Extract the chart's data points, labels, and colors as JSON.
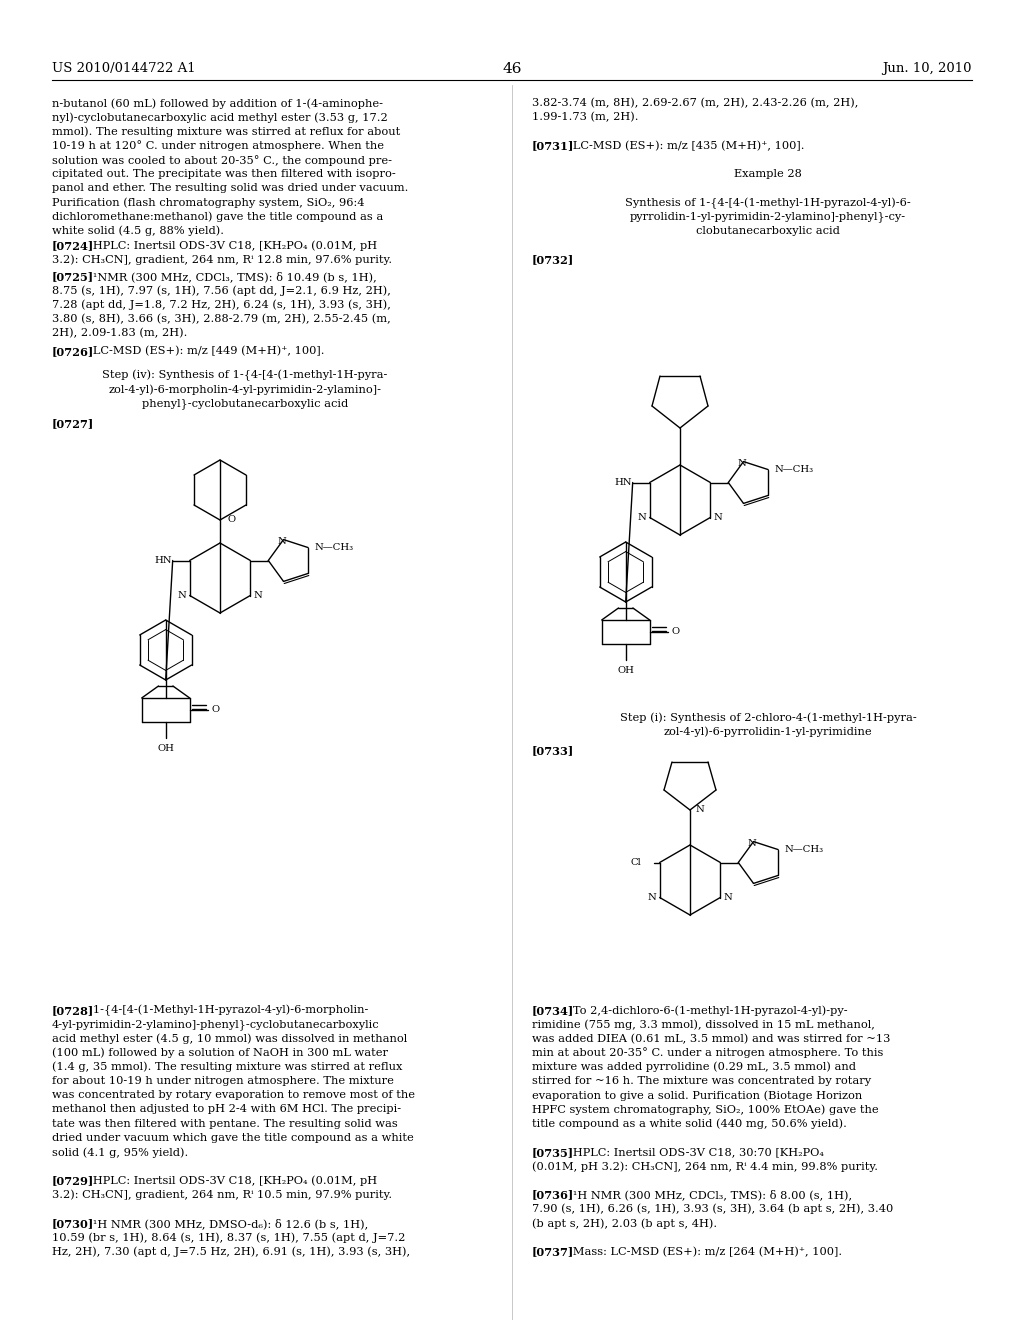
{
  "patent_number": "US 2010/0144722 A1",
  "patent_date": "Jun. 10, 2010",
  "page_number": "46",
  "bg_color": "#ffffff",
  "left_col_lines": [
    "n-butanol (60 mL) followed by addition of 1-(4-aminophe-",
    "nyl)-cyclobutanecarboxylic acid methyl ester (3.53 g, 17.2",
    "mmol). The resulting mixture was stirred at reflux for about",
    "10-19 h at 120° C. under nitrogen atmosphere. When the",
    "solution was cooled to about 20-35° C., the compound pre-",
    "cipitated out. The precipitate was then filtered with isopro-",
    "panol and ether. The resulting solid was dried under vacuum.",
    "Purification (flash chromatography system, SiO₂, 96:4",
    "dichloromethane:methanol) gave the title compound as a",
    "white solid (4.5 g, 88% yield)."
  ],
  "right_col_lines_top": [
    "3.82-3.74 (m, 8H), 2.69-2.67 (m, 2H), 2.43-2.26 (m, 2H),",
    "1.99-1.73 (m, 2H).",
    "",
    "[0731]   LC-MSD (ES+): m/z [435 (M+H)⁺, 100].",
    "",
    "Example 28",
    "",
    "Synthesis of 1-{4-[4-(1-methyl-1H-pyrazol-4-yl)-6-",
    "pyrrolidin-1-yl-pyrimidin-2-ylamino]-phenyl}-cy-",
    "clobutanecarboxylic acid",
    "",
    "[0732]"
  ],
  "step_iv_lines": [
    "Step (iv): Synthesis of 1-{4-[4-(1-methyl-1H-pyra-",
    "zol-4-yl)-6-morpholin-4-yl-pyrimidin-2-ylamino]-",
    "phenyl}-cyclobutanecarboxylic acid"
  ],
  "step_i_lines": [
    "Step (i): Synthesis of 2-chloro-4-(1-methyl-1H-pyra-",
    "zol-4-yl)-6-pyrrolidin-1-yl-pyrimidine"
  ],
  "bottom_left_lines": [
    "[0728]   1-{4-[4-(1-Methyl-1H-pyrazol-4-yl)-6-morpholin-",
    "4-yl-pyrimidin-2-ylamino]-phenyl}-cyclobutanecarboxylic",
    "acid methyl ester (4.5 g, 10 mmol) was dissolved in methanol",
    "(100 mL) followed by a solution of NaOH in 300 mL water",
    "(1.4 g, 35 mmol). The resulting mixture was stirred at reflux",
    "for about 10-19 h under nitrogen atmosphere. The mixture",
    "was concentrated by rotary evaporation to remove most of the",
    "methanol then adjusted to pH 2-4 with 6M HCl. The precipi-",
    "tate was then filtered with pentane. The resulting solid was",
    "dried under vacuum which gave the title compound as a white",
    "solid (4.1 g, 95% yield).",
    "",
    "[0729]   HPLC: Inertsil ODS-3V C18, [KH₂PO₄ (0.01M, pH",
    "3.2): CH₃CN], gradient, 264 nm, Rⁱ 10.5 min, 97.9% purity.",
    "",
    "[0730]   ¹H NMR (300 MHz, DMSO-d₆): δ 12.6 (b s, 1H),",
    "10.59 (br s, 1H), 8.64 (s, 1H), 8.37 (s, 1H), 7.55 (apt d, J=7.2",
    "Hz, 2H), 7.30 (apt d, J=7.5 Hz, 2H), 6.91 (s, 1H), 3.93 (s, 3H),"
  ],
  "bottom_right_lines": [
    "[0734]   To 2,4-dichloro-6-(1-methyl-1H-pyrazol-4-yl)-py-",
    "rimidine (755 mg, 3.3 mmol), dissolved in 15 mL methanol,",
    "was added DIEA (0.61 mL, 3.5 mmol) and was stirred for ~13",
    "min at about 20-35° C. under a nitrogen atmosphere. To this",
    "mixture was added pyrrolidine (0.29 mL, 3.5 mmol) and",
    "stirred for ~16 h. The mixture was concentrated by rotary",
    "evaporation to give a solid. Purification (Biotage Horizon",
    "HPFC system chromatography, SiO₂, 100% EtOAe) gave the",
    "title compound as a white solid (440 mg, 50.6% yield).",
    "",
    "[0735]   HPLC: Inertsil ODS-3V C18, 30:70 [KH₂PO₄",
    "(0.01M, pH 3.2): CH₃CN], 264 nm, Rⁱ 4.4 min, 99.8% purity.",
    "",
    "[0736]   ¹H NMR (300 MHz, CDCl₃, TMS): δ 8.00 (s, 1H),",
    "7.90 (s, 1H), 6.26 (s, 1H), 3.93 (s, 3H), 3.64 (b apt s, 2H), 3.40",
    "(b apt s, 2H), 2.03 (b apt s, 4H).",
    "",
    "[0737]   Mass: LC-MSD (ES+): m/z [264 (M+H)⁺, 100]."
  ],
  "para_0724_lines": [
    "[0724]   HPLC: Inertsil ODS-3V C18, [KH₂PO₄ (0.01M, pH",
    "3.2): CH₃CN], gradient, 264 nm, Rⁱ 12.8 min, 97.6% purity."
  ],
  "para_0725_lines": [
    "[0725]   ¹NMR (300 MHz, CDCl₃, TMS): δ 10.49 (b s, 1H),",
    "8.75 (s, 1H), 7.97 (s, 1H), 7.56 (apt dd, J=2.1, 6.9 Hz, 2H),",
    "7.28 (apt dd, J=1.8, 7.2 Hz, 2H), 6.24 (s, 1H), 3.93 (s, 3H),",
    "3.80 (s, 8H), 3.66 (s, 3H), 2.88-2.79 (m, 2H), 2.55-2.45 (m,",
    "2H), 2.09-1.83 (m, 2H)."
  ],
  "para_0726_lines": [
    "[0726]   LC-MSD (ES+): m/z [449 (M+H)⁺, 100]."
  ],
  "para_0727_label": "[0727]",
  "para_0733_label": "[0733]"
}
